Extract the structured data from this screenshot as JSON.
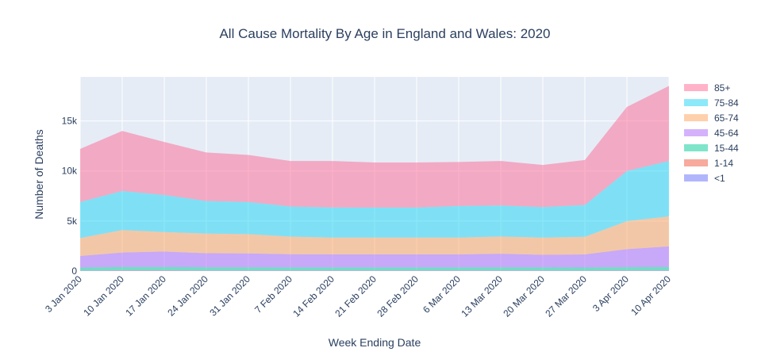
{
  "chart_data": {
    "type": "area",
    "stacked": true,
    "title": "All Cause Mortality By Age in England and Wales: 2020",
    "xlabel": "Week Ending Date",
    "ylabel": "Number of Deaths",
    "categories": [
      "3 Jan 2020",
      "10 Jan 2020",
      "17 Jan 2020",
      "24 Jan 2020",
      "31 Jan 2020",
      "7 Feb 2020",
      "14 Feb 2020",
      "21 Feb 2020",
      "28 Feb 2020",
      "6 Mar 2020",
      "13 Mar 2020",
      "20 Mar 2020",
      "27 Mar 2020",
      "3 Apr 2020",
      "10 Apr 2020"
    ],
    "ylim": [
      0,
      19400
    ],
    "yticks": [
      0,
      5000,
      10000,
      15000
    ],
    "ytick_labels": [
      "0",
      "5k",
      "10k",
      "15k"
    ],
    "grid": true,
    "legend_position": "right",
    "background_color": "#e5ecf6",
    "series": [
      {
        "name": "<1",
        "color": "#636efa",
        "values": [
          40,
          50,
          50,
          45,
          45,
          45,
          45,
          45,
          45,
          45,
          45,
          45,
          40,
          45,
          45
        ]
      },
      {
        "name": "1-14",
        "color": "#ef553b",
        "values": [
          20,
          30,
          30,
          25,
          25,
          25,
          25,
          25,
          25,
          25,
          25,
          25,
          20,
          25,
          25
        ]
      },
      {
        "name": "15-44",
        "color": "#00cc96",
        "values": [
          290,
          330,
          330,
          310,
          310,
          300,
          300,
          300,
          300,
          300,
          310,
          300,
          300,
          320,
          340
        ]
      },
      {
        "name": "45-64",
        "color": "#ab63fa",
        "values": [
          1150,
          1440,
          1540,
          1400,
          1380,
          1310,
          1290,
          1290,
          1290,
          1290,
          1350,
          1250,
          1300,
          1800,
          2050
        ]
      },
      {
        "name": "65-74",
        "color": "#ffa15a",
        "values": [
          1800,
          2250,
          1950,
          1970,
          1930,
          1760,
          1690,
          1690,
          1690,
          1690,
          1720,
          1730,
          1760,
          2800,
          3000
        ]
      },
      {
        "name": "75-84",
        "color": "#19d3f3",
        "values": [
          3600,
          3900,
          3700,
          3250,
          3210,
          3010,
          3000,
          2990,
          2990,
          3150,
          3100,
          3040,
          3180,
          5010,
          5540
        ]
      },
      {
        "name": "85+",
        "color": "#ff6692",
        "values": [
          5300,
          6000,
          5300,
          4850,
          4700,
          4550,
          4650,
          4510,
          4510,
          4400,
          4450,
          4210,
          4500,
          6400,
          7500
        ]
      }
    ]
  }
}
